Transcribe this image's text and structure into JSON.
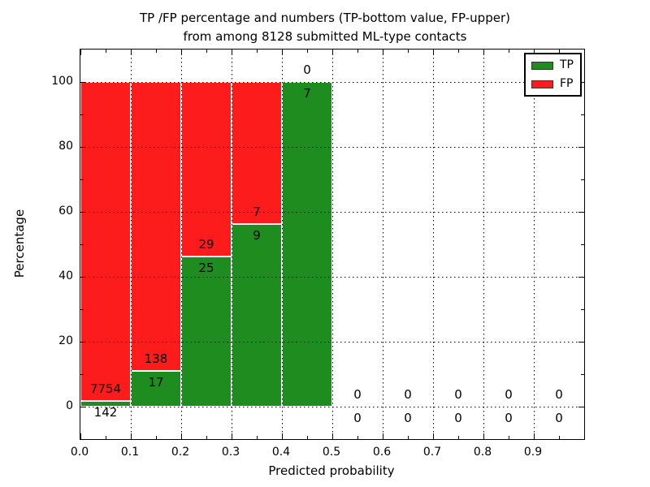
{
  "title": {
    "line1": "TP /FP percentage and numbers (TP-bottom value, FP-upper)",
    "line2": "from among 8128 submitted ML-type contacts"
  },
  "axes": {
    "xlabel": "Predicted probability",
    "ylabel": "Percentage",
    "xlim": [
      0.0,
      1.0
    ],
    "ylim": [
      -10,
      110
    ],
    "xticks": [
      {
        "value": 0.0,
        "label": "0.0"
      },
      {
        "value": 0.1,
        "label": "0.1"
      },
      {
        "value": 0.2,
        "label": "0.2"
      },
      {
        "value": 0.3,
        "label": "0.3"
      },
      {
        "value": 0.4,
        "label": "0.4"
      },
      {
        "value": 0.5,
        "label": "0.5"
      },
      {
        "value": 0.6,
        "label": "0.6"
      },
      {
        "value": 0.7,
        "label": "0.7"
      },
      {
        "value": 0.8,
        "label": "0.8"
      },
      {
        "value": 0.9,
        "label": "0.9"
      }
    ],
    "yticks": [
      {
        "value": 0,
        "label": "0"
      },
      {
        "value": 20,
        "label": "20"
      },
      {
        "value": 40,
        "label": "40"
      },
      {
        "value": 60,
        "label": "60"
      },
      {
        "value": 80,
        "label": "80"
      },
      {
        "value": 100,
        "label": "100"
      }
    ],
    "grid": "dotted"
  },
  "legend": {
    "position": "upper-right",
    "items": [
      {
        "label": "TP",
        "color": "#1e8c1e"
      },
      {
        "label": "FP",
        "color": "#fd1c1c"
      }
    ]
  },
  "chart_data": {
    "type": "bar",
    "stacked": true,
    "normalized_to_percent_per_bin": true,
    "total_contacts": 8128,
    "tp_label_position": "bottom value",
    "fp_label_position": "upper value",
    "bins": [
      {
        "range": [
          0.0,
          0.1
        ],
        "tp": 142,
        "fp": 7754
      },
      {
        "range": [
          0.1,
          0.2
        ],
        "tp": 17,
        "fp": 138
      },
      {
        "range": [
          0.2,
          0.3
        ],
        "tp": 25,
        "fp": 29
      },
      {
        "range": [
          0.3,
          0.4
        ],
        "tp": 9,
        "fp": 7
      },
      {
        "range": [
          0.4,
          0.5
        ],
        "tp": 7,
        "fp": 0
      },
      {
        "range": [
          0.5,
          0.6
        ],
        "tp": 0,
        "fp": 0
      },
      {
        "range": [
          0.6,
          0.7
        ],
        "tp": 0,
        "fp": 0
      },
      {
        "range": [
          0.7,
          0.8
        ],
        "tp": 0,
        "fp": 0
      },
      {
        "range": [
          0.8,
          0.9
        ],
        "tp": 0,
        "fp": 0
      },
      {
        "range": [
          0.9,
          1.0
        ],
        "tp": 0,
        "fp": 0
      }
    ]
  }
}
